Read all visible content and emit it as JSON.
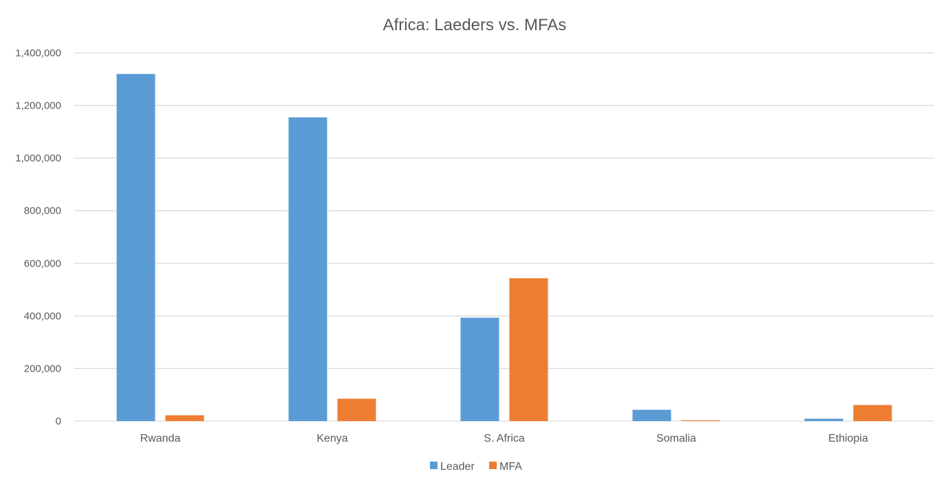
{
  "chart_data": {
    "type": "bar",
    "title": "Africa: Laeders vs. MFAs",
    "xlabel": "",
    "ylabel": "",
    "categories": [
      "Rwanda",
      "Kenya",
      "S. Africa",
      "Somalia",
      "Ethiopia"
    ],
    "series": [
      {
        "name": "Leader",
        "color": "#5B9BD5",
        "values": [
          1320000,
          1155000,
          393000,
          43000,
          9000
        ]
      },
      {
        "name": "MFA",
        "color": "#ED7D31",
        "values": [
          22000,
          85000,
          543000,
          3000,
          61000
        ]
      }
    ],
    "ylim": [
      0,
      1400000
    ],
    "yticks": [
      0,
      200000,
      400000,
      600000,
      800000,
      1000000,
      1200000,
      1400000
    ],
    "ytick_labels": [
      "0",
      "200,000",
      "400,000",
      "600,000",
      "800,000",
      "1,000,000",
      "1,200,000",
      "1,400,000"
    ],
    "grid": true,
    "legend_position": "bottom"
  }
}
